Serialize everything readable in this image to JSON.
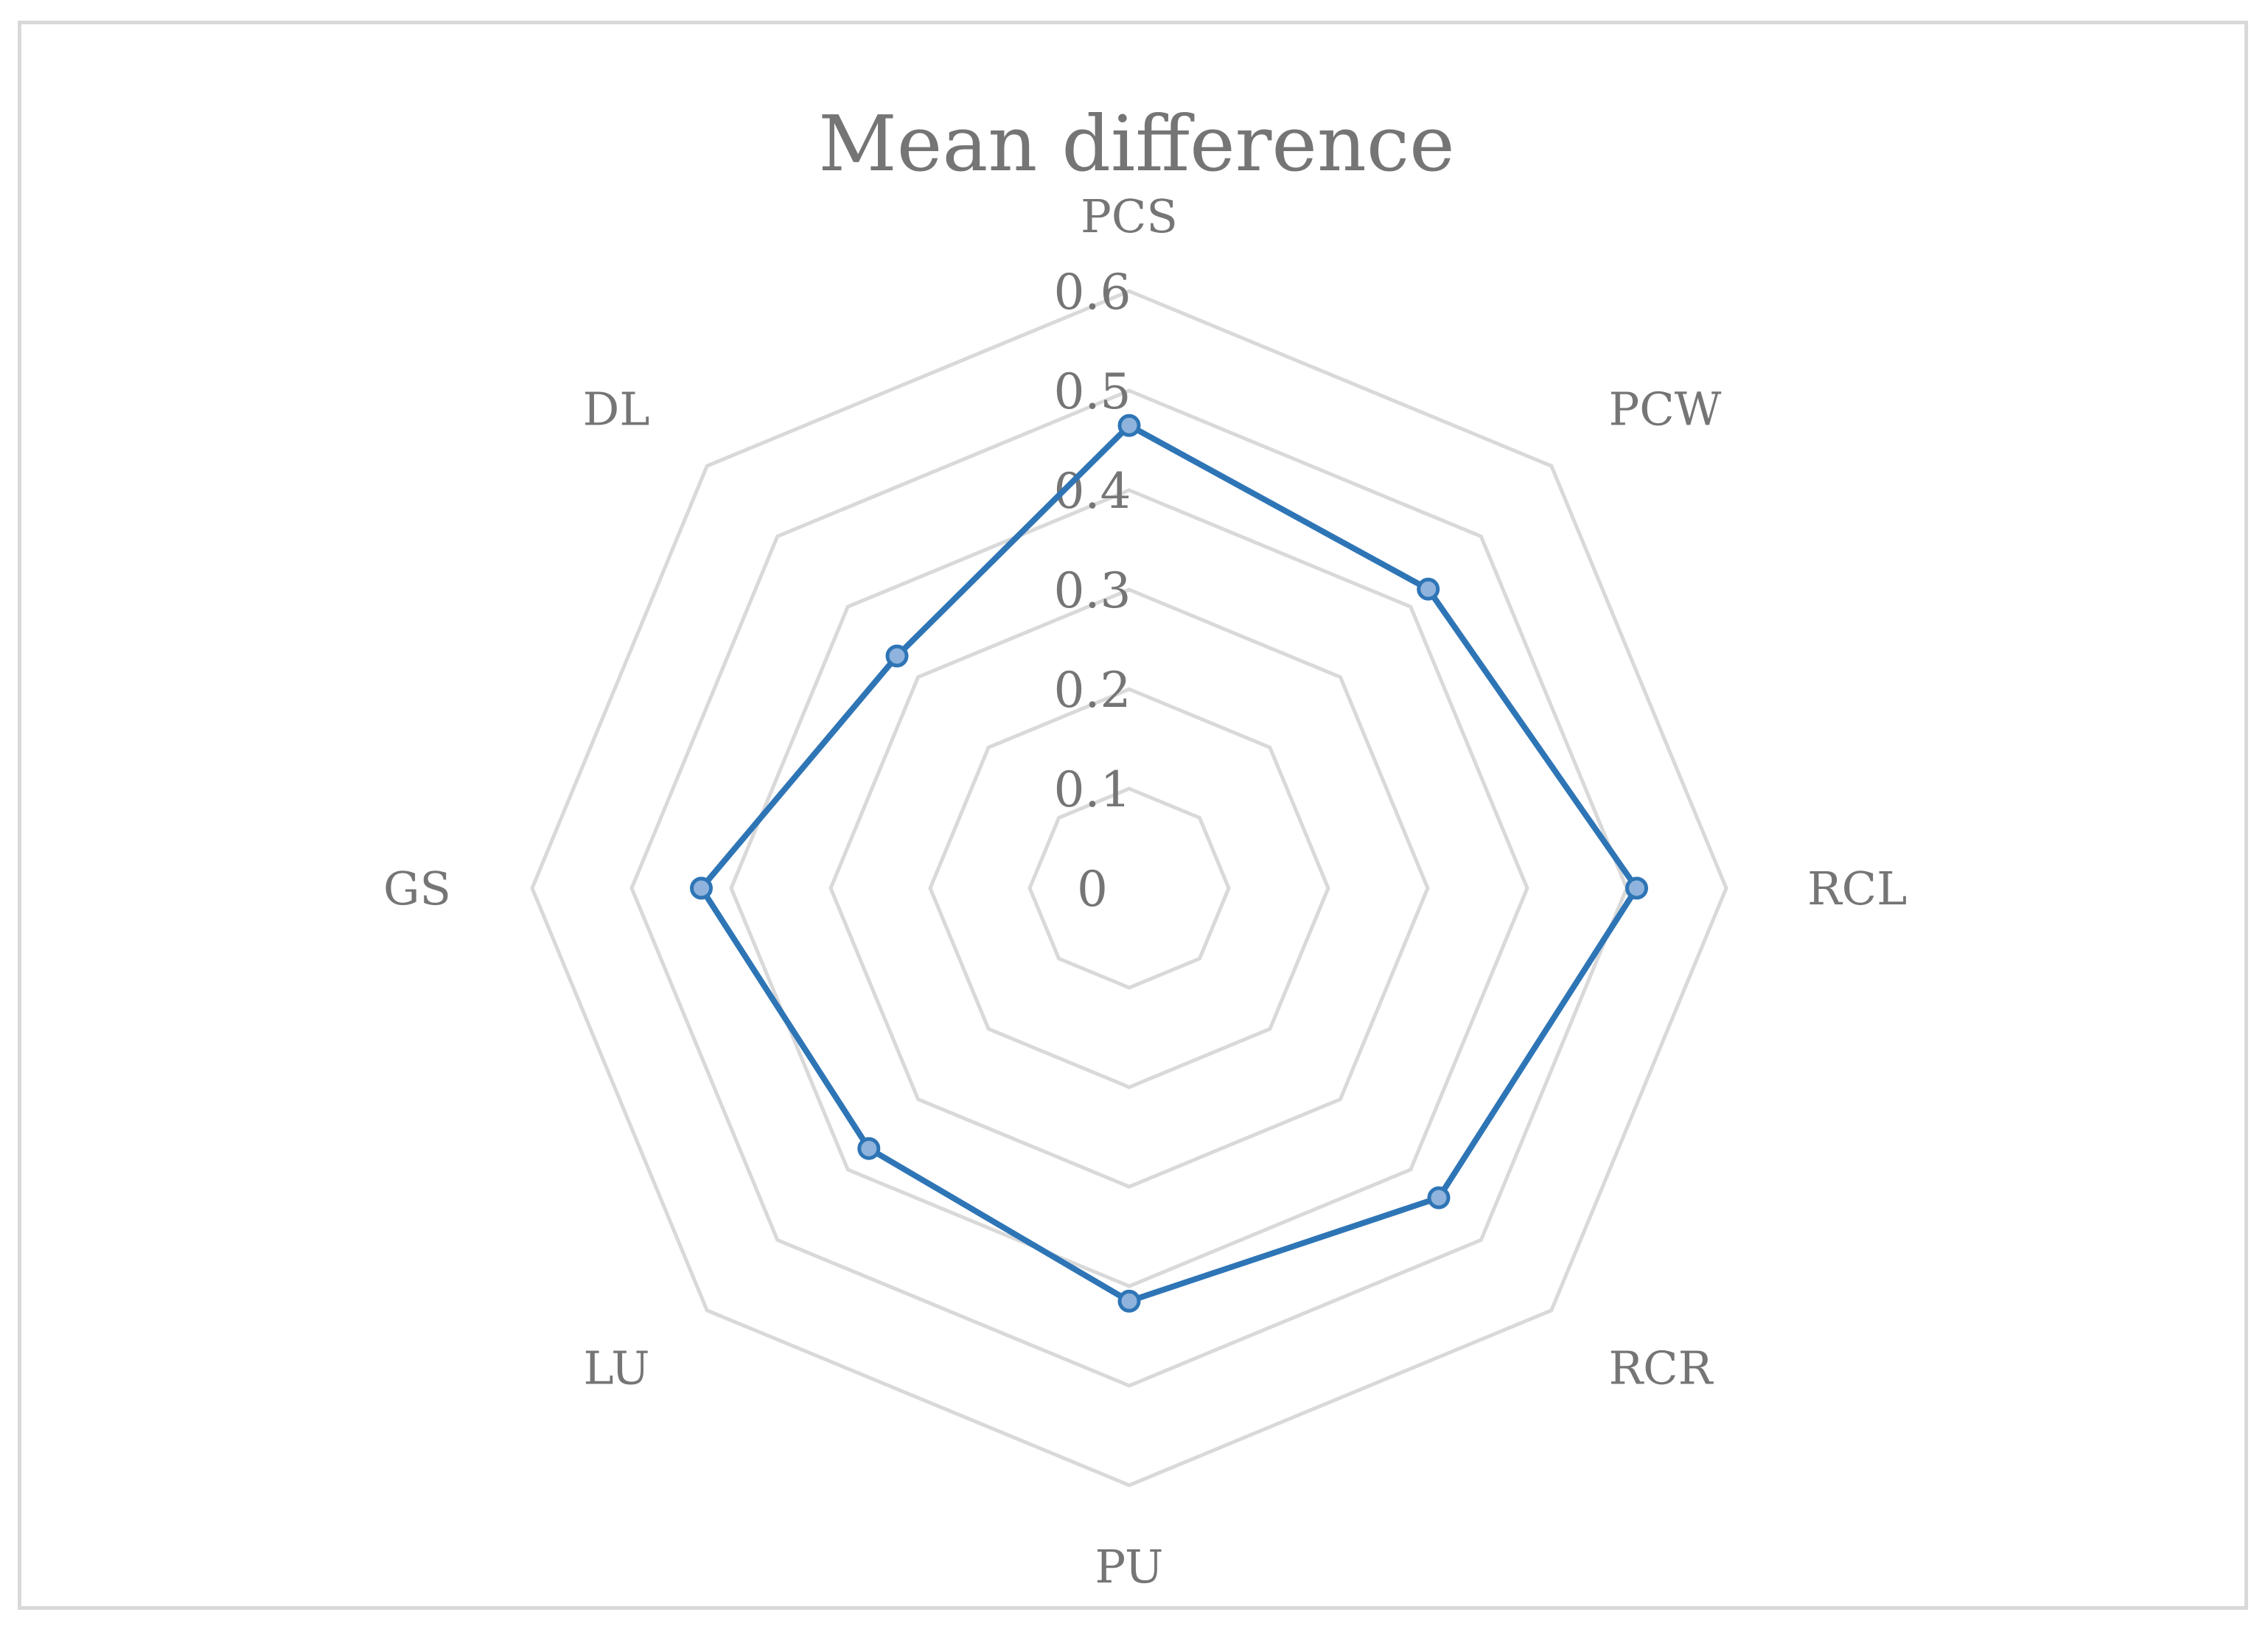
{
  "chart_data": {
    "type": "radar",
    "title": "Mean difference",
    "categories": [
      "PCS",
      "PCW",
      "RCL",
      "RCR",
      "PU",
      "LU",
      "GS",
      "DL"
    ],
    "series": [
      {
        "values": [
          0.465,
          0.425,
          0.51,
          0.44,
          0.415,
          0.37,
          0.43,
          0.33
        ]
      }
    ],
    "r_ticks": [
      "0",
      "0.1",
      "0.2",
      "0.3",
      "0.4",
      "0.5",
      "0.6"
    ],
    "rlim": [
      0,
      0.6
    ],
    "grid": true,
    "legend": "none",
    "colors": {
      "series_line": "#2e75b6",
      "marker_fill": "#8fb3dc",
      "grid": "#d9d9d9",
      "text": "#757575"
    }
  }
}
